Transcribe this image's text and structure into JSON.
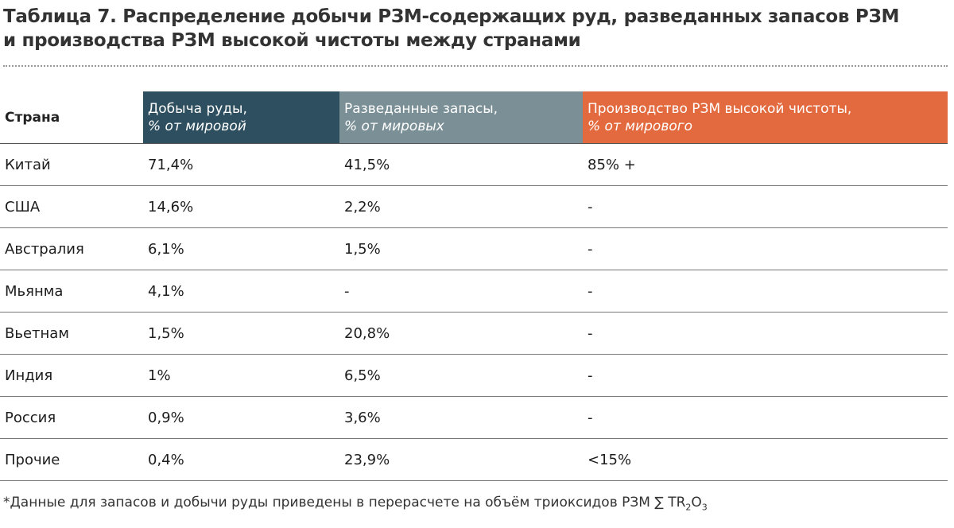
{
  "header": {
    "title_lines": [
      "Таблица 7. Распределение добычи РЗМ-содержащих руд, разведанных запасов РЗМ",
      "и производства РЗМ высокой чистоты между странами"
    ]
  },
  "table": {
    "corner": "Страна",
    "columns": [
      {
        "title": "Добыча руды,",
        "subtitle": "% от мировой"
      },
      {
        "title": "Разведанные запасы,",
        "subtitle": "% от мировых"
      },
      {
        "title": "Производство РЗМ высокой чистоты,",
        "subtitle": "% от мирового"
      }
    ],
    "rows": [
      [
        "Китай",
        "71,4%",
        "41,5%",
        "85% +"
      ],
      [
        "США",
        "14,6%",
        "2,2%",
        "-"
      ],
      [
        "Австралия",
        "6,1%",
        "1,5%",
        "-"
      ],
      [
        "Мьянма",
        "4,1%",
        "-",
        "-"
      ],
      [
        "Вьетнам",
        "1,5%",
        "20,8%",
        "-"
      ],
      [
        "Индия",
        "1%",
        "6,5%",
        "-"
      ],
      [
        "Россия",
        "0,9%",
        "3,6%",
        "-"
      ],
      [
        "Прочие",
        "0,4%",
        "23,9%",
        "<15%"
      ]
    ]
  },
  "footnote": [
    "*Данные для запасов и добычи руды приведены в перерасчете на объём триоксидов РЗМ ∑ TR",
    "2",
    "O",
    "3"
  ]
}
